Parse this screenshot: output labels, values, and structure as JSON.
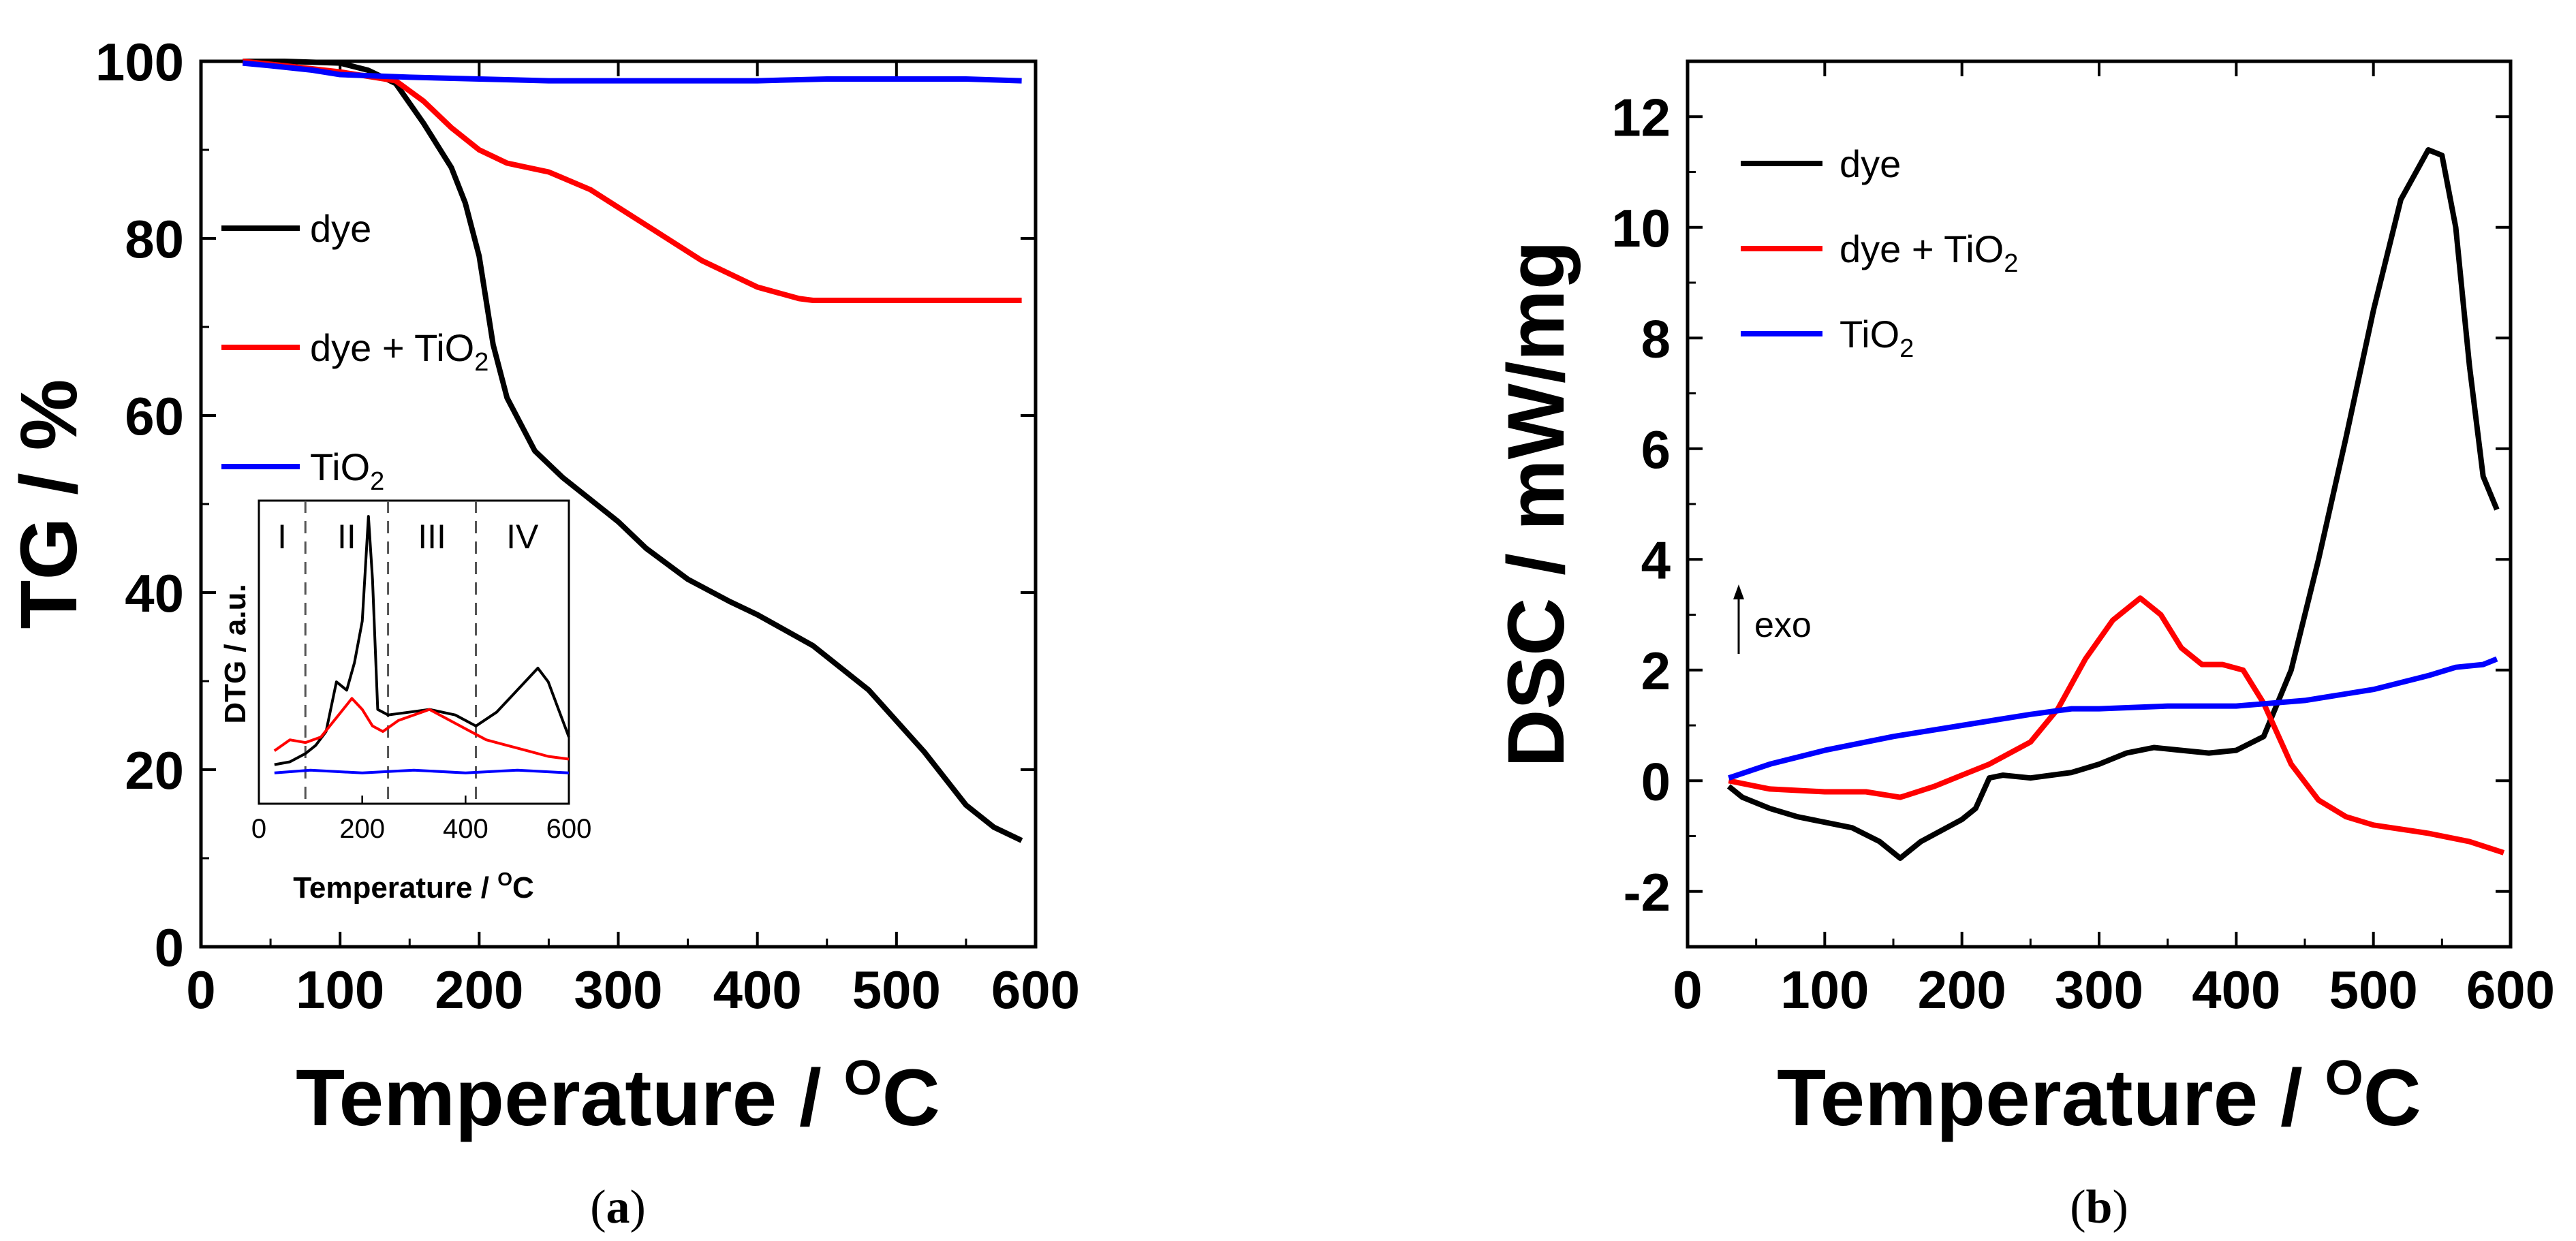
{
  "chart_data": [
    {
      "panel": "a",
      "type": "line",
      "xlabel": "Temperature / ",
      "xlabel_sup": "O",
      "xlabel_tail": "C",
      "ylabel": "TG / %",
      "xlim": [
        0,
        600
      ],
      "ylim": [
        0,
        100
      ],
      "xticks": [
        "0",
        "100",
        "200",
        "300",
        "400",
        "500",
        "600"
      ],
      "yticks": [
        "0",
        "20",
        "40",
        "60",
        "80",
        "100"
      ],
      "legend_position": "upper-left",
      "series": [
        {
          "name": "dye",
          "name_sub": "",
          "color": "#000000",
          "x": [
            30,
            60,
            100,
            120,
            140,
            160,
            180,
            190,
            200,
            210,
            220,
            240,
            260,
            280,
            300,
            320,
            350,
            380,
            400,
            440,
            480,
            520,
            550,
            570,
            590
          ],
          "y": [
            100,
            100,
            99.8,
            99,
            97.5,
            93,
            88,
            84,
            78,
            68,
            62,
            56,
            53,
            50.5,
            48,
            45,
            41.5,
            39,
            37.5,
            34,
            29,
            22,
            16,
            13.5,
            12
          ]
        },
        {
          "name": "dye + TiO",
          "name_sub": "2",
          "color": "#ff0000",
          "x": [
            30,
            60,
            100,
            120,
            140,
            160,
            180,
            200,
            220,
            250,
            280,
            300,
            330,
            360,
            400,
            430,
            440,
            460,
            500,
            550,
            590
          ],
          "y": [
            100,
            99.5,
            98.8,
            98.3,
            97.8,
            95.5,
            92.5,
            90,
            88.5,
            87.5,
            85.5,
            83.5,
            80.5,
            77.5,
            74.5,
            73.2,
            73,
            73,
            73,
            73,
            73
          ]
        },
        {
          "name": "TiO",
          "name_sub": "2",
          "color": "#0000ff",
          "x": [
            30,
            50,
            80,
            100,
            150,
            200,
            250,
            300,
            350,
            400,
            450,
            500,
            550,
            590
          ],
          "y": [
            99.8,
            99.5,
            99,
            98.5,
            98.2,
            98,
            97.8,
            97.8,
            97.8,
            97.8,
            98,
            98,
            98,
            97.8
          ]
        }
      ],
      "inset": {
        "ylabel": "DTG / a.u.",
        "xlabel": "Temperature / ",
        "xlabel_sup": "O",
        "xlabel_tail": "C",
        "xlim": [
          0,
          600
        ],
        "ylim": [
          0,
          100
        ],
        "xticks": [
          "0",
          "200",
          "400",
          "600"
        ],
        "region_dividers_x": [
          90,
          250,
          420
        ],
        "regions": [
          "I",
          "II",
          "III",
          "IV"
        ],
        "region_centers_x": [
          45,
          170,
          335,
          510
        ],
        "series": [
          {
            "name": "dye",
            "color": "#000000",
            "x": [
              30,
              60,
              90,
              110,
              130,
              150,
              170,
              185,
              200,
              212,
              220,
              230,
              250,
              290,
              330,
              380,
              420,
              460,
              500,
              540,
              560,
              580,
              600
            ],
            "y": [
              8,
              9,
              12,
              15,
              20,
              38,
              35,
              45,
              60,
              98,
              75,
              28,
              26,
              27,
              28,
              26,
              22,
              27,
              35,
              43,
              38,
              28,
              18
            ]
          },
          {
            "name": "dye + TiO2",
            "color": "#ff0000",
            "x": [
              30,
              60,
              90,
              120,
              150,
              180,
              200,
              220,
              240,
              270,
              300,
              330,
              360,
              400,
              440,
              480,
              520,
              560,
              600
            ],
            "y": [
              13,
              17,
              16,
              18,
              25,
              32,
              28,
              22,
              20,
              24,
              26,
              28,
              25,
              21,
              17,
              15,
              13,
              11,
              10
            ]
          },
          {
            "name": "TiO2",
            "color": "#0000ff",
            "x": [
              30,
              100,
              200,
              300,
              400,
              500,
              600
            ],
            "y": [
              5,
              6,
              5,
              6,
              5,
              6,
              5
            ]
          }
        ]
      },
      "panel_label_open": "(",
      "panel_label": "a",
      "panel_label_close": ")"
    },
    {
      "panel": "b",
      "type": "line",
      "xlabel": "Temperature / ",
      "xlabel_sup": "O",
      "xlabel_tail": "C",
      "ylabel": "DSC / mW/mg",
      "xlim": [
        0,
        600
      ],
      "ylim": [
        -3,
        13
      ],
      "xticks": [
        "0",
        "100",
        "200",
        "300",
        "400",
        "500",
        "600"
      ],
      "yticks": [
        "-2",
        "0",
        "2",
        "4",
        "6",
        "8",
        "10",
        "12"
      ],
      "ytick_values": [
        -2,
        0,
        2,
        4,
        6,
        8,
        10,
        12
      ],
      "legend_position": "upper-left",
      "annotation": "exo",
      "series": [
        {
          "name": "dye",
          "name_sub": "",
          "color": "#000000",
          "x": [
            30,
            40,
            60,
            80,
            100,
            120,
            140,
            155,
            170,
            185,
            200,
            210,
            220,
            230,
            250,
            280,
            300,
            320,
            340,
            360,
            380,
            400,
            420,
            440,
            460,
            480,
            500,
            520,
            540,
            550,
            560,
            570,
            580,
            590
          ],
          "y": [
            -0.1,
            -0.3,
            -0.5,
            -0.65,
            -0.75,
            -0.85,
            -1.1,
            -1.4,
            -1.1,
            -0.9,
            -0.7,
            -0.5,
            0.05,
            0.1,
            0.05,
            0.15,
            0.3,
            0.5,
            0.6,
            0.55,
            0.5,
            0.55,
            0.8,
            2.0,
            4.0,
            6.2,
            8.5,
            10.5,
            11.4,
            11.3,
            10.0,
            7.5,
            5.5,
            4.9
          ]
        },
        {
          "name": "dye + TiO",
          "name_sub": "2",
          "color": "#ff0000",
          "x": [
            30,
            60,
            100,
            130,
            155,
            180,
            200,
            220,
            250,
            270,
            290,
            310,
            330,
            345,
            360,
            375,
            390,
            405,
            420,
            440,
            460,
            480,
            500,
            540,
            570,
            595
          ],
          "y": [
            0.0,
            -0.15,
            -0.2,
            -0.2,
            -0.3,
            -0.1,
            0.1,
            0.3,
            0.7,
            1.3,
            2.2,
            2.9,
            3.3,
            3.0,
            2.4,
            2.1,
            2.1,
            2.0,
            1.4,
            0.3,
            -0.35,
            -0.65,
            -0.8,
            -0.95,
            -1.1,
            -1.3
          ]
        },
        {
          "name": "TiO",
          "name_sub": "2",
          "color": "#0000ff",
          "x": [
            30,
            60,
            100,
            150,
            200,
            250,
            280,
            300,
            350,
            400,
            450,
            500,
            540,
            560,
            580,
            590
          ],
          "y": [
            0.05,
            0.3,
            0.55,
            0.8,
            1.0,
            1.2,
            1.3,
            1.3,
            1.35,
            1.35,
            1.45,
            1.65,
            1.9,
            2.05,
            2.1,
            2.2
          ]
        }
      ],
      "panel_label_open": "(",
      "panel_label": "b",
      "panel_label_close": ")"
    }
  ]
}
